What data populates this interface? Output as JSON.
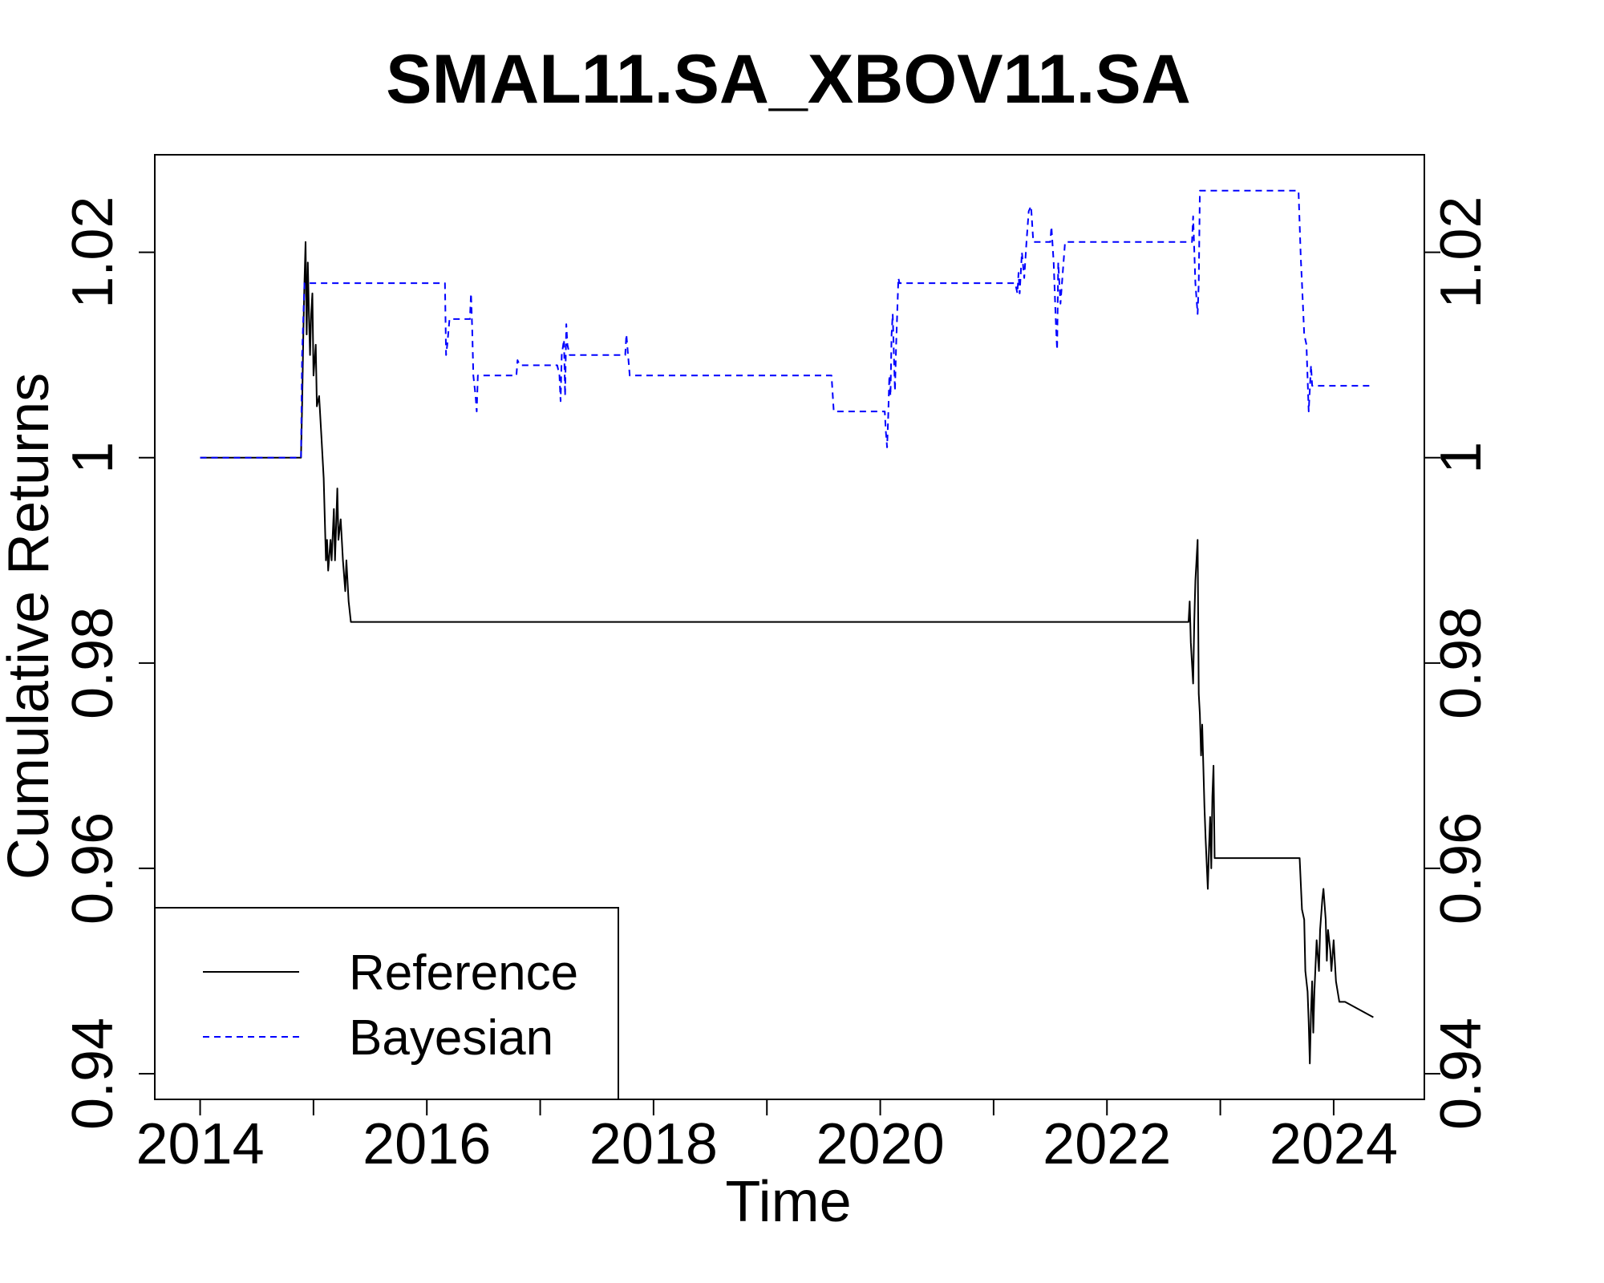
{
  "chart_data": {
    "type": "line",
    "title": "SMAL11.SA_XBOV11.SA",
    "xlabel": "Time",
    "ylabel": "Cumulative Returns",
    "xlim": [
      2013.6,
      2024.8
    ],
    "ylim": [
      0.9375,
      1.0295
    ],
    "x_ticks": [
      2014,
      2015,
      2016,
      2017,
      2018,
      2019,
      2020,
      2021,
      2022,
      2023,
      2024
    ],
    "x_tick_labels": [
      "2014",
      "",
      "2016",
      "",
      "2018",
      "",
      "2020",
      "",
      "2022",
      "",
      "2024"
    ],
    "y_ticks": [
      0.94,
      0.96,
      0.98,
      1.0,
      1.02
    ],
    "y_tick_labels": [
      "0.94",
      "0.96",
      "0.98",
      "1",
      "1.02"
    ],
    "legend": {
      "position": "bottom-left",
      "entries": [
        "Reference",
        "Bayesian"
      ]
    },
    "grid": false,
    "series": [
      {
        "name": "Reference",
        "color": "#000000",
        "style": "solid",
        "points": [
          [
            2014.0,
            1.0
          ],
          [
            2014.89,
            1.0
          ],
          [
            2014.9,
            1.005
          ],
          [
            2014.91,
            1.012
          ],
          [
            2014.92,
            1.017
          ],
          [
            2014.93,
            1.021
          ],
          [
            2014.94,
            1.012
          ],
          [
            2014.95,
            1.019
          ],
          [
            2014.96,
            1.014
          ],
          [
            2014.97,
            1.01
          ],
          [
            2014.98,
            1.014
          ],
          [
            2014.99,
            1.016
          ],
          [
            2015.0,
            1.008
          ],
          [
            2015.02,
            1.011
          ],
          [
            2015.03,
            1.005
          ],
          [
            2015.05,
            1.006
          ],
          [
            2015.07,
            1.002
          ],
          [
            2015.09,
            0.998
          ],
          [
            2015.1,
            0.994
          ],
          [
            2015.11,
            0.99
          ],
          [
            2015.12,
            0.992
          ],
          [
            2015.13,
            0.989
          ],
          [
            2015.15,
            0.992
          ],
          [
            2015.16,
            0.99
          ],
          [
            2015.18,
            0.995
          ],
          [
            2015.19,
            0.99
          ],
          [
            2015.21,
            0.997
          ],
          [
            2015.22,
            0.992
          ],
          [
            2015.24,
            0.994
          ],
          [
            2015.26,
            0.99
          ],
          [
            2015.28,
            0.987
          ],
          [
            2015.29,
            0.99
          ],
          [
            2015.31,
            0.986
          ],
          [
            2015.33,
            0.984
          ],
          [
            2022.72,
            0.984
          ],
          [
            2022.73,
            0.986
          ],
          [
            2022.74,
            0.982
          ],
          [
            2022.76,
            0.978
          ],
          [
            2022.77,
            0.984
          ],
          [
            2022.78,
            0.988
          ],
          [
            2022.8,
            0.992
          ],
          [
            2022.81,
            0.977
          ],
          [
            2022.82,
            0.975
          ],
          [
            2022.83,
            0.971
          ],
          [
            2022.84,
            0.974
          ],
          [
            2022.86,
            0.966
          ],
          [
            2022.87,
            0.963
          ],
          [
            2022.89,
            0.958
          ],
          [
            2022.9,
            0.962
          ],
          [
            2022.91,
            0.965
          ],
          [
            2022.92,
            0.96
          ],
          [
            2022.93,
            0.967
          ],
          [
            2022.94,
            0.97
          ],
          [
            2022.95,
            0.961
          ],
          [
            2022.97,
            0.961
          ],
          [
            2023.7,
            0.961
          ],
          [
            2023.72,
            0.956
          ],
          [
            2023.74,
            0.955
          ],
          [
            2023.75,
            0.95
          ],
          [
            2023.77,
            0.948
          ],
          [
            2023.78,
            0.945
          ],
          [
            2023.79,
            0.941
          ],
          [
            2023.8,
            0.946
          ],
          [
            2023.81,
            0.949
          ],
          [
            2023.82,
            0.944
          ],
          [
            2023.83,
            0.948
          ],
          [
            2023.85,
            0.953
          ],
          [
            2023.87,
            0.95
          ],
          [
            2023.88,
            0.954
          ],
          [
            2023.9,
            0.957
          ],
          [
            2023.91,
            0.958
          ],
          [
            2023.93,
            0.955
          ],
          [
            2023.94,
            0.951
          ],
          [
            2023.95,
            0.954
          ],
          [
            2023.97,
            0.952
          ],
          [
            2023.98,
            0.95
          ],
          [
            2024.0,
            0.953
          ],
          [
            2024.02,
            0.949
          ],
          [
            2024.05,
            0.947
          ],
          [
            2024.1,
            0.947
          ],
          [
            2024.35,
            0.9455
          ]
        ]
      },
      {
        "name": "Bayesian",
        "color": "#0000ff",
        "style": "dashed",
        "points": [
          [
            2014.0,
            1.0
          ],
          [
            2014.89,
            1.0
          ],
          [
            2014.9,
            1.01
          ],
          [
            2014.92,
            1.017
          ],
          [
            2016.16,
            1.017
          ],
          [
            2016.17,
            1.01
          ],
          [
            2016.18,
            1.011
          ],
          [
            2016.2,
            1.0135
          ],
          [
            2016.38,
            1.0135
          ],
          [
            2016.39,
            1.016
          ],
          [
            2016.4,
            1.0125
          ],
          [
            2016.41,
            1.008
          ],
          [
            2016.43,
            1.006
          ],
          [
            2016.44,
            1.0045
          ],
          [
            2016.45,
            1.008
          ],
          [
            2016.47,
            1.008
          ],
          [
            2016.79,
            1.008
          ],
          [
            2016.8,
            1.0095
          ],
          [
            2016.82,
            1.009
          ],
          [
            2017.15,
            1.009
          ],
          [
            2017.17,
            1.008
          ],
          [
            2017.18,
            1.0055
          ],
          [
            2017.19,
            1.01
          ],
          [
            2017.21,
            1.0115
          ],
          [
            2017.22,
            1.006
          ],
          [
            2017.23,
            1.013
          ],
          [
            2017.24,
            1.011
          ],
          [
            2017.26,
            1.01
          ],
          [
            2017.75,
            1.01
          ],
          [
            2017.76,
            1.012
          ],
          [
            2017.79,
            1.008
          ],
          [
            2019.57,
            1.008
          ],
          [
            2019.59,
            1.0045
          ],
          [
            2020.04,
            1.0045
          ],
          [
            2020.05,
            1.0025
          ],
          [
            2020.06,
            1.001
          ],
          [
            2020.07,
            1.004
          ],
          [
            2020.08,
            1.008
          ],
          [
            2020.09,
            1.006
          ],
          [
            2020.1,
            1.012
          ],
          [
            2020.11,
            1.014
          ],
          [
            2020.13,
            1.0065
          ],
          [
            2020.14,
            1.011
          ],
          [
            2020.16,
            1.0175
          ],
          [
            2020.17,
            1.017
          ],
          [
            2021.19,
            1.017
          ],
          [
            2021.21,
            1.016
          ],
          [
            2021.22,
            1.018
          ],
          [
            2021.23,
            1.016
          ],
          [
            2021.25,
            1.02
          ],
          [
            2021.27,
            1.0175
          ],
          [
            2021.29,
            1.021
          ],
          [
            2021.31,
            1.024
          ],
          [
            2021.33,
            1.0245
          ],
          [
            2021.35,
            1.021
          ],
          [
            2021.5,
            1.021
          ],
          [
            2021.51,
            1.0225
          ],
          [
            2021.53,
            1.019
          ],
          [
            2021.55,
            1.013
          ],
          [
            2021.56,
            1.0105
          ],
          [
            2021.57,
            1.019
          ],
          [
            2021.59,
            1.015
          ],
          [
            2021.61,
            1.018
          ],
          [
            2021.63,
            1.021
          ],
          [
            2022.75,
            1.021
          ],
          [
            2022.76,
            1.0235
          ],
          [
            2022.78,
            1.017
          ],
          [
            2022.8,
            1.014
          ],
          [
            2022.81,
            1.017
          ],
          [
            2022.82,
            1.026
          ],
          [
            2023.69,
            1.026
          ],
          [
            2023.71,
            1.0195
          ],
          [
            2023.72,
            1.017
          ],
          [
            2023.74,
            1.012
          ],
          [
            2023.76,
            1.011
          ],
          [
            2023.78,
            1.0045
          ],
          [
            2023.8,
            1.009
          ],
          [
            2023.81,
            1.007
          ],
          [
            2024.35,
            1.007
          ]
        ]
      }
    ]
  }
}
